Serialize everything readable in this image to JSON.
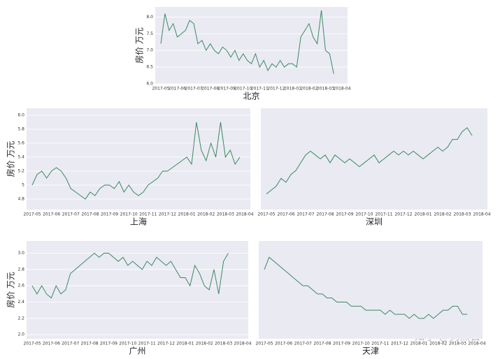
{
  "chart_data": [
    {
      "type": "line",
      "xlabel": "北京",
      "ylabel": "房价  万元",
      "color": "#3a8a62",
      "categories": [
        "2017-05",
        null,
        null,
        null,
        "2017-06",
        null,
        null,
        null,
        "2017-07",
        null,
        null,
        null,
        "2017-08",
        null,
        null,
        null,
        "2017-09",
        null,
        null,
        null,
        "2017-10",
        null,
        null,
        null,
        "2017-11",
        null,
        null,
        null,
        "2017-12",
        null,
        null,
        null,
        "2018-01",
        null,
        null,
        null,
        "2018-02",
        null,
        null,
        null,
        "2018-03",
        null,
        null,
        null,
        "2018-04"
      ],
      "values": [
        7.2,
        8.1,
        7.6,
        7.8,
        7.4,
        7.5,
        7.6,
        7.9,
        7.8,
        7.2,
        7.3,
        7.0,
        7.2,
        7.0,
        6.9,
        7.1,
        7.0,
        6.8,
        7.0,
        6.7,
        6.9,
        6.7,
        6.6,
        6.9,
        6.5,
        6.7,
        6.4,
        6.6,
        6.5,
        6.7,
        6.5,
        6.6,
        6.6,
        6.5,
        7.4,
        7.6,
        7.8,
        7.4,
        7.2,
        8.2,
        7.0,
        6.9,
        6.3,
        null,
        null
      ],
      "ylim": [
        6.0,
        8.3
      ],
      "yticks": [
        {
          "value": 6,
          "label": "6.0"
        },
        {
          "value": 6.5,
          "label": "6.5"
        },
        {
          "value": 7,
          "label": "7.0"
        },
        {
          "value": 7.5,
          "label": "7.5"
        },
        {
          "value": 8,
          "label": "8.0"
        }
      ],
      "grid": true
    },
    {
      "type": "line",
      "xlabel": "上海",
      "ylabel": "房价  万元",
      "color": "#3a8a62",
      "categories": [
        "2017-05",
        null,
        null,
        null,
        "2017-06",
        null,
        null,
        null,
        "2017-07",
        null,
        null,
        null,
        "2017-08",
        null,
        null,
        null,
        "2017-09",
        null,
        null,
        null,
        "2017-10",
        null,
        null,
        null,
        "2017-11",
        null,
        null,
        null,
        "2017-12",
        null,
        null,
        null,
        "2018-01",
        null,
        null,
        null,
        "2018-02",
        null,
        null,
        null,
        "2018-03",
        null,
        null,
        null,
        "2018-04"
      ],
      "values": [
        5.0,
        5.15,
        5.2,
        5.1,
        5.2,
        5.25,
        5.2,
        5.1,
        4.95,
        4.9,
        4.85,
        4.8,
        4.9,
        4.85,
        4.95,
        5.0,
        5.0,
        4.95,
        5.05,
        4.9,
        5.0,
        4.9,
        4.85,
        4.9,
        5.0,
        5.05,
        5.1,
        5.2,
        5.2,
        5.25,
        5.3,
        5.35,
        5.4,
        5.3,
        5.9,
        5.5,
        5.35,
        5.6,
        5.4,
        5.9,
        5.4,
        5.5,
        5.3,
        5.4,
        null
      ],
      "ylim": [
        4.65,
        6.1
      ],
      "yticks": [
        4.8,
        5,
        5.2,
        5.4,
        5.6,
        5.8,
        {
          "value": 6,
          "label": "6.0"
        }
      ],
      "grid": true
    },
    {
      "type": "line",
      "xlabel": "深圳",
      "color": "#3a8a62",
      "categories": [
        "2017-05",
        null,
        null,
        null,
        "2017-06",
        null,
        null,
        null,
        "2017-07",
        null,
        null,
        null,
        "2017-08",
        null,
        null,
        null,
        "2017-09",
        null,
        null,
        null,
        "2017-10",
        null,
        null,
        null,
        "2017-11",
        null,
        null,
        null,
        "2017-12",
        null,
        null,
        null,
        "2018-01",
        null,
        null,
        null,
        "2018-02",
        null,
        null,
        null,
        "2018-03",
        null,
        null,
        null,
        "2018-04"
      ],
      "values": [
        4.8,
        4.85,
        4.9,
        5.0,
        4.95,
        5.05,
        5.1,
        5.2,
        5.3,
        5.35,
        5.3,
        5.25,
        5.3,
        5.2,
        5.3,
        5.25,
        5.2,
        5.25,
        5.2,
        5.15,
        5.2,
        5.25,
        5.3,
        5.2,
        5.25,
        5.3,
        5.35,
        5.3,
        5.35,
        5.3,
        5.35,
        5.3,
        5.25,
        5.3,
        5.35,
        5.4,
        5.35,
        5.4,
        5.5,
        5.5,
        5.6,
        5.65,
        5.55,
        null,
        null
      ],
      "ylim": [
        4.6,
        5.9
      ],
      "grid": false
    },
    {
      "type": "line",
      "xlabel": "广州",
      "ylabel": "房价  万元",
      "color": "#3a8a62",
      "categories": [
        "2017-05",
        null,
        null,
        null,
        "2017-06",
        null,
        null,
        null,
        "2017-07",
        null,
        null,
        null,
        "2017-08",
        null,
        null,
        null,
        "2017-09",
        null,
        null,
        null,
        "2017-10",
        null,
        null,
        null,
        "2017-11",
        null,
        null,
        null,
        "2017-12",
        null,
        null,
        null,
        "2018-01",
        null,
        null,
        null,
        "2018-02",
        null,
        null,
        null,
        "2018-03",
        null,
        null,
        null,
        "2018-04"
      ],
      "values": [
        2.6,
        2.5,
        2.6,
        2.5,
        2.45,
        2.6,
        2.5,
        2.55,
        2.75,
        2.8,
        2.85,
        2.9,
        2.95,
        3.0,
        2.95,
        3.0,
        3.0,
        2.95,
        2.9,
        2.95,
        2.85,
        2.9,
        2.85,
        2.8,
        2.9,
        2.85,
        2.95,
        2.9,
        2.85,
        2.9,
        2.8,
        2.7,
        2.7,
        2.6,
        2.85,
        2.75,
        2.6,
        2.55,
        2.8,
        2.5,
        2.9,
        3.0,
        null,
        null,
        null
      ],
      "ylim": [
        1.95,
        3.15
      ],
      "yticks": [
        {
          "value": 2,
          "label": "2.0"
        },
        2.2,
        2.4,
        2.6,
        2.8,
        {
          "value": 3,
          "label": "3.0"
        }
      ],
      "grid": true
    },
    {
      "type": "line",
      "xlabel": "天津",
      "color": "#3a8a62",
      "categories": [
        "2017-05",
        null,
        null,
        null,
        "2017-06",
        null,
        null,
        null,
        "2017-07",
        null,
        null,
        null,
        "2017-08",
        null,
        null,
        null,
        "2017-09",
        null,
        null,
        null,
        "2017-10",
        null,
        null,
        null,
        "2017-11",
        null,
        null,
        null,
        "2017-12",
        null,
        null,
        null,
        "2018-01",
        null,
        null,
        null,
        "2018-02",
        null,
        null,
        null,
        "2018-03",
        null,
        null,
        null,
        "2018-04"
      ],
      "values": [
        2.8,
        2.95,
        2.9,
        2.85,
        2.8,
        2.75,
        2.7,
        2.65,
        2.6,
        2.6,
        2.55,
        2.5,
        2.5,
        2.45,
        2.45,
        2.4,
        2.4,
        2.4,
        2.35,
        2.35,
        2.35,
        2.3,
        2.3,
        2.3,
        2.3,
        2.25,
        2.3,
        2.25,
        2.25,
        2.25,
        2.2,
        2.25,
        2.2,
        2.2,
        2.25,
        2.2,
        2.25,
        2.3,
        2.3,
        2.35,
        2.35,
        2.25,
        2.25,
        null,
        null
      ],
      "ylim": [
        1.95,
        3.15
      ],
      "grid": false
    }
  ],
  "watermark": "知乎 @狗熊会"
}
